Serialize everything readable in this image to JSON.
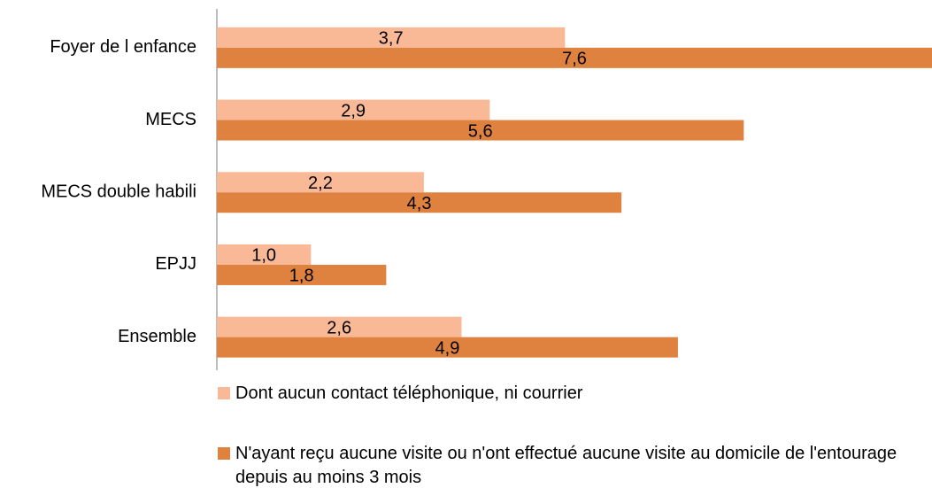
{
  "chart_data": {
    "type": "hbar",
    "categories": [
      "Foyer de l enfance",
      "MECS",
      "MECS double habili",
      "EPJJ",
      "Ensemble"
    ],
    "series": [
      {
        "name": "Dont aucun contact téléphonique, ni courrier",
        "color": "#f9b896",
        "values": [
          3.7,
          2.9,
          2.2,
          1.0,
          2.6
        ],
        "value_labels": [
          "3,7",
          "2,9",
          "2,2",
          "1,0",
          "2,6"
        ]
      },
      {
        "name": "N'ayant reçu aucune visite ou n'ont effectué aucune visite au domicile de l'entourage depuis au moins 3 mois",
        "color": "#e0823f",
        "values": [
          7.6,
          5.6,
          4.3,
          1.8,
          4.9
        ],
        "value_labels": [
          "7,6",
          "5,6",
          "4,3",
          "1,8",
          "4,9"
        ]
      }
    ],
    "xlim": [
      0,
      7.6
    ],
    "legend": "bottom"
  }
}
